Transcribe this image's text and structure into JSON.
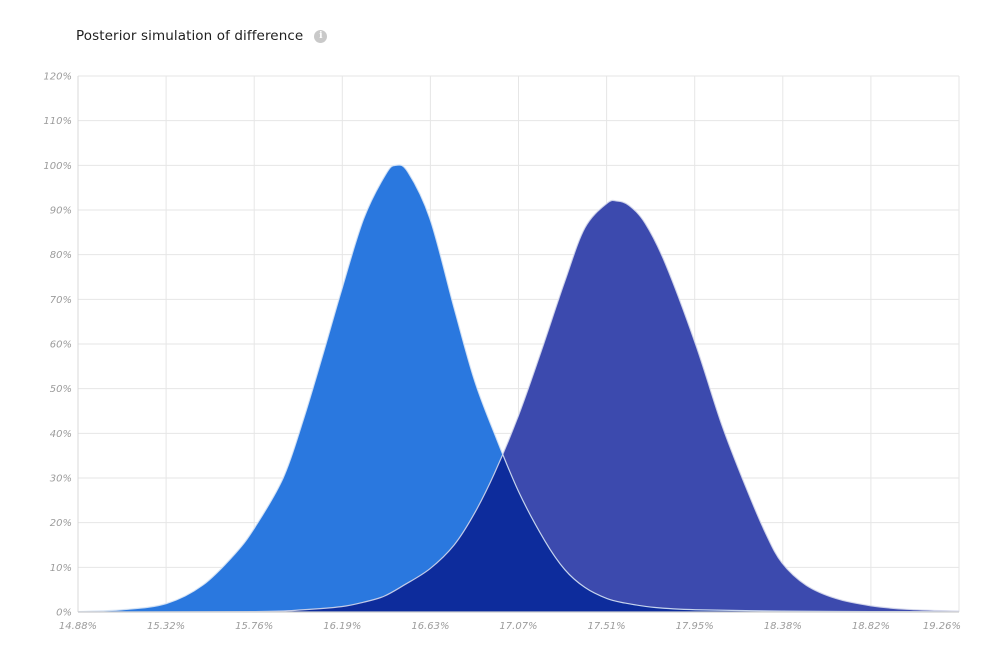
{
  "header": {
    "title": "Posterior simulation of difference",
    "info_icon": "info-icon"
  },
  "chart_data": {
    "type": "area",
    "title": "Posterior simulation of difference",
    "xlabel": "",
    "ylabel": "",
    "x_tick_labels": [
      "14.88%",
      "15.32%",
      "15.76%",
      "16.19%",
      "16.63%",
      "17.07%",
      "17.51%",
      "17.95%",
      "18.38%",
      "18.82%",
      "19.26%"
    ],
    "y_tick_labels": [
      "0%",
      "10%",
      "20%",
      "30%",
      "40%",
      "50%",
      "60%",
      "70%",
      "80%",
      "90%",
      "100%",
      "110%",
      "120%"
    ],
    "xlim": [
      14.88,
      19.26
    ],
    "ylim": [
      0,
      120
    ],
    "x_unit": "%",
    "y_unit": "%",
    "grid": true,
    "legend": "none",
    "series": [
      {
        "color": "#2a78df",
        "points": [
          [
            14.88,
            0.1
          ],
          [
            15.1,
            0.5
          ],
          [
            15.32,
            1.9
          ],
          [
            15.5,
            6.0
          ],
          [
            15.66,
            13.0
          ],
          [
            15.76,
            19.0
          ],
          [
            15.9,
            30.0
          ],
          [
            16.0,
            43.0
          ],
          [
            16.1,
            58.0
          ],
          [
            16.19,
            72.0
          ],
          [
            16.3,
            88.0
          ],
          [
            16.41,
            98.0
          ],
          [
            16.46,
            100.0
          ],
          [
            16.52,
            98.5
          ],
          [
            16.63,
            88.0
          ],
          [
            16.75,
            68.0
          ],
          [
            16.85,
            52.0
          ],
          [
            16.95,
            40.0
          ],
          [
            17.07,
            27.0
          ],
          [
            17.2,
            16.0
          ],
          [
            17.3,
            9.5
          ],
          [
            17.4,
            5.5
          ],
          [
            17.51,
            3.0
          ],
          [
            17.6,
            2.0
          ],
          [
            17.75,
            1.0
          ],
          [
            17.95,
            0.5
          ],
          [
            18.38,
            0.2
          ],
          [
            18.82,
            0.1
          ],
          [
            19.26,
            0.05
          ]
        ]
      },
      {
        "color": "#3c4aae",
        "points": [
          [
            14.88,
            0.0
          ],
          [
            15.76,
            0.1
          ],
          [
            16.0,
            0.5
          ],
          [
            16.19,
            1.2
          ],
          [
            16.3,
            2.2
          ],
          [
            16.4,
            3.5
          ],
          [
            16.5,
            6.0
          ],
          [
            16.63,
            9.7
          ],
          [
            16.75,
            15.0
          ],
          [
            16.85,
            22.0
          ],
          [
            16.95,
            31.0
          ],
          [
            17.07,
            44.0
          ],
          [
            17.18,
            58.0
          ],
          [
            17.3,
            74.0
          ],
          [
            17.4,
            86.0
          ],
          [
            17.51,
            91.5
          ],
          [
            17.56,
            92.0
          ],
          [
            17.62,
            91.0
          ],
          [
            17.7,
            87.0
          ],
          [
            17.8,
            78.0
          ],
          [
            17.95,
            60.0
          ],
          [
            18.08,
            42.0
          ],
          [
            18.2,
            28.0
          ],
          [
            18.3,
            17.5
          ],
          [
            18.38,
            11.0
          ],
          [
            18.5,
            6.0
          ],
          [
            18.65,
            3.0
          ],
          [
            18.82,
            1.4
          ],
          [
            19.0,
            0.6
          ],
          [
            19.26,
            0.2
          ]
        ]
      }
    ],
    "overlap_color": "#0d2c9c"
  }
}
